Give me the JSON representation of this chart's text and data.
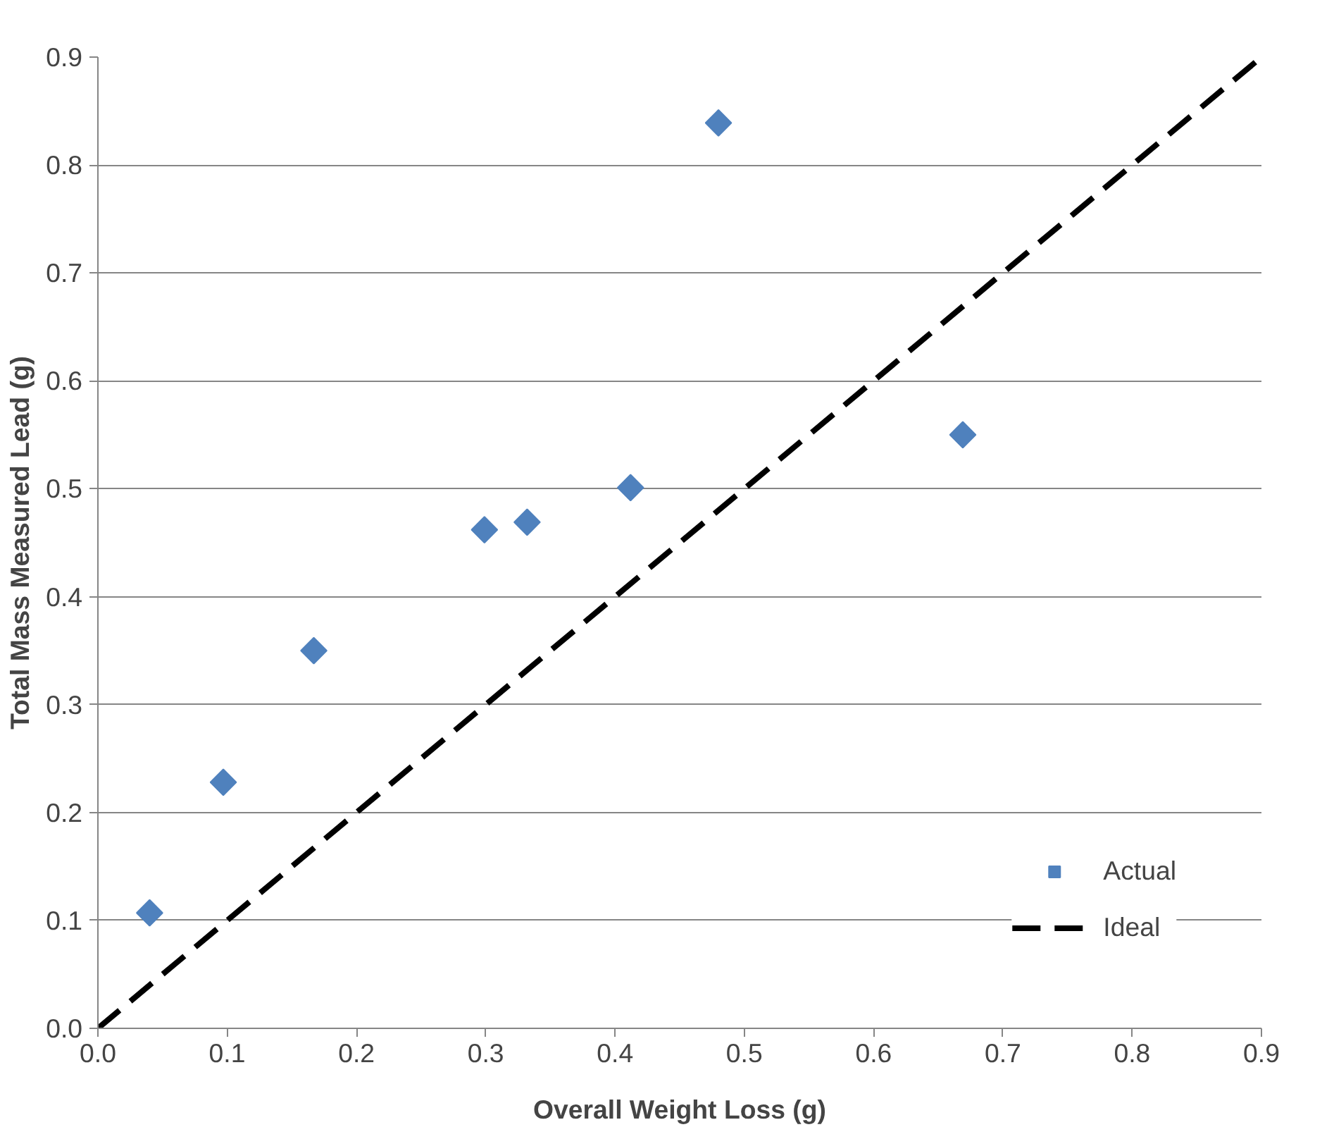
{
  "chart_data": {
    "type": "scatter",
    "xlabel": "Overall Weight Loss (g)",
    "ylabel": "Total Mass Measured Lead (g)",
    "x": [
      0.04,
      0.097,
      0.167,
      0.299,
      0.332,
      0.412,
      0.48,
      0.669
    ],
    "series": [
      {
        "name": "Actual",
        "color": "#4f81bd",
        "marker": "diamond",
        "values": [
          0.107,
          0.228,
          0.35,
          0.462,
          0.469,
          0.501,
          0.839,
          0.55
        ]
      },
      {
        "name": "Ideal",
        "type": "line",
        "color": "#000000",
        "line_style": "dashed",
        "marker": "none",
        "x": [
          0,
          0.9
        ],
        "values": [
          0,
          0.9
        ]
      }
    ],
    "xlim": [
      0,
      0.9
    ],
    "ylim": [
      0,
      0.9
    ],
    "xticks": [
      {
        "value": 0,
        "label": "0.0"
      },
      0.1,
      0.2,
      0.3,
      0.4,
      0.5,
      0.6,
      0.7,
      0.8,
      0.9
    ],
    "yticks": [
      {
        "value": 0,
        "label": "0.0"
      },
      0.1,
      0.2,
      0.3,
      0.4,
      0.5,
      0.6,
      0.7,
      0.8,
      0.9
    ],
    "grid": "y",
    "legend": "bottom right"
  }
}
